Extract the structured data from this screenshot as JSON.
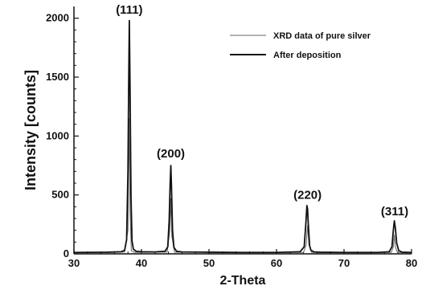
{
  "chart_data": {
    "type": "line",
    "xlabel": "2-Theta",
    "ylabel": "Intensity [counts]",
    "xlim": [
      30,
      80
    ],
    "ylim": [
      0,
      2100
    ],
    "xticks": [
      30,
      40,
      50,
      60,
      70,
      80
    ],
    "yticks": [
      0,
      500,
      1000,
      1500,
      2000
    ],
    "grid": false,
    "legend_position": "top-right",
    "series": [
      {
        "name": "XRD data of pure silver",
        "color": "#666666",
        "x": [
          30,
          37.5,
          38.0,
          38.15,
          38.3,
          38.5,
          39.0,
          43.8,
          44.2,
          44.35,
          44.5,
          44.9,
          64.0,
          64.4,
          64.6,
          64.8,
          65.2,
          77.0,
          77.3,
          77.45,
          77.6,
          77.9,
          80
        ],
        "y": [
          12,
          15,
          200,
          1150,
          380,
          25,
          12,
          15,
          200,
          470,
          150,
          14,
          12,
          80,
          240,
          80,
          12,
          12,
          60,
          160,
          60,
          12,
          10
        ]
      },
      {
        "name": "After deposition",
        "color": "#111111",
        "x": [
          30,
          35,
          37.0,
          37.5,
          37.8,
          38.0,
          38.1,
          38.2,
          38.3,
          38.45,
          38.6,
          38.8,
          39.2,
          40,
          42,
          43.5,
          43.9,
          44.1,
          44.25,
          44.35,
          44.45,
          44.6,
          44.8,
          45.2,
          46,
          50,
          55,
          60,
          63.5,
          64.1,
          64.35,
          64.5,
          64.6,
          64.7,
          64.9,
          65.1,
          65.6,
          66.5,
          70,
          75,
          76.7,
          77.1,
          77.3,
          77.45,
          77.6,
          77.8,
          78.1,
          78.6,
          80
        ],
        "y": [
          12,
          14,
          18,
          30,
          120,
          700,
          1400,
          1980,
          1450,
          480,
          110,
          40,
          22,
          18,
          16,
          22,
          60,
          280,
          600,
          750,
          560,
          200,
          55,
          22,
          16,
          14,
          12,
          12,
          18,
          60,
          260,
          410,
          380,
          260,
          70,
          30,
          16,
          14,
          12,
          12,
          18,
          60,
          200,
          280,
          220,
          90,
          28,
          14,
          12
        ]
      }
    ],
    "annotations": [
      {
        "text": "(111)",
        "x": 38.2,
        "y": 2010
      },
      {
        "text": "(200)",
        "x": 44.35,
        "y": 790
      },
      {
        "text": "(220)",
        "x": 64.6,
        "y": 440
      },
      {
        "text": "(311)",
        "x": 77.5,
        "y": 300
      }
    ]
  }
}
